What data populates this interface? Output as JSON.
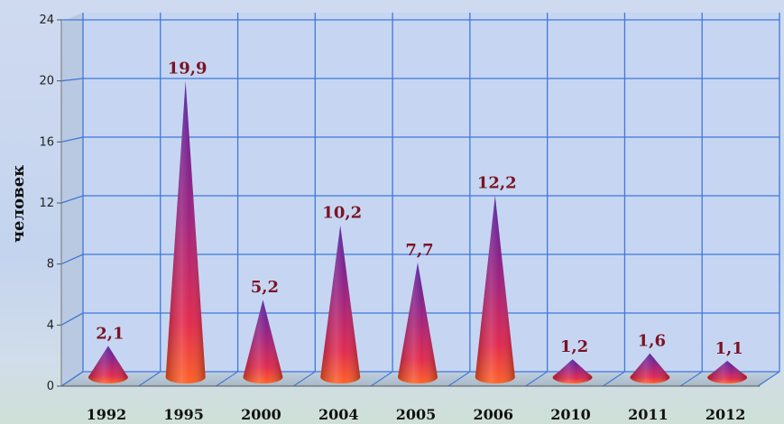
{
  "chart_data": {
    "type": "bar",
    "categories": [
      "1992",
      "1995",
      "2000",
      "2004",
      "2005",
      "2006",
      "2010",
      "2011",
      "2012"
    ],
    "values": [
      2.1,
      19.9,
      5.2,
      10.2,
      7.7,
      12.2,
      1.2,
      1.6,
      1.1
    ],
    "data_labels": [
      "2,1",
      "19,9",
      "5,2",
      "10,2",
      "7,7",
      "12,2",
      "1,2",
      "1,6",
      "1,1"
    ],
    "ylabel": "человек",
    "ylim": [
      0,
      24
    ],
    "yticks": [
      0,
      4,
      8,
      12,
      16,
      20,
      24
    ],
    "ytick_labels": [
      "0",
      "4",
      "8",
      "12",
      "16",
      "20",
      "24"
    ],
    "grid": true,
    "mark_shape": "cone",
    "colors": {
      "cone_top": "#5a1a9a",
      "cone_mid": "#b0186e",
      "cone_base": "#ff3a2a",
      "data_label": "#7a1424",
      "grid": "#3f78d8",
      "back_wall": "#c6d6f2"
    }
  }
}
